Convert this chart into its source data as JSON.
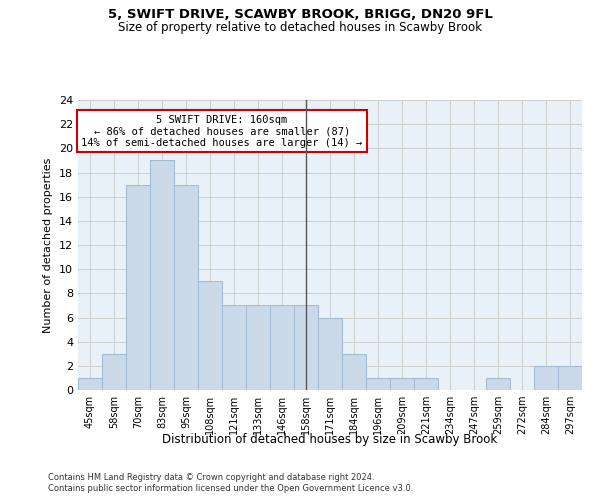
{
  "title1": "5, SWIFT DRIVE, SCAWBY BROOK, BRIGG, DN20 9FL",
  "title2": "Size of property relative to detached houses in Scawby Brook",
  "xlabel": "Distribution of detached houses by size in Scawby Brook",
  "ylabel": "Number of detached properties",
  "bin_labels": [
    "45sqm",
    "58sqm",
    "70sqm",
    "83sqm",
    "95sqm",
    "108sqm",
    "121sqm",
    "133sqm",
    "146sqm",
    "158sqm",
    "171sqm",
    "184sqm",
    "196sqm",
    "209sqm",
    "221sqm",
    "234sqm",
    "247sqm",
    "259sqm",
    "272sqm",
    "284sqm",
    "297sqm"
  ],
  "values": [
    1,
    3,
    17,
    19,
    17,
    9,
    7,
    7,
    7,
    7,
    6,
    3,
    1,
    1,
    1,
    0,
    0,
    1,
    0,
    2,
    2
  ],
  "bar_color": "#c9d9ea",
  "bar_edge_color": "#a0b8d0",
  "vline_x_index": 9,
  "vline_color": "#555555",
  "annotation_text": "5 SWIFT DRIVE: 160sqm\n← 86% of detached houses are smaller (87)\n14% of semi-detached houses are larger (14) →",
  "annotation_box_color": "#ffffff",
  "annotation_box_edge_color": "#cc0000",
  "ylim": [
    0,
    24
  ],
  "yticks": [
    0,
    2,
    4,
    6,
    8,
    10,
    12,
    14,
    16,
    18,
    20,
    22,
    24
  ],
  "footer1": "Contains HM Land Registry data © Crown copyright and database right 2024.",
  "footer2": "Contains public sector information licensed under the Open Government Licence v3.0.",
  "bg_color": "#e8f0f8"
}
